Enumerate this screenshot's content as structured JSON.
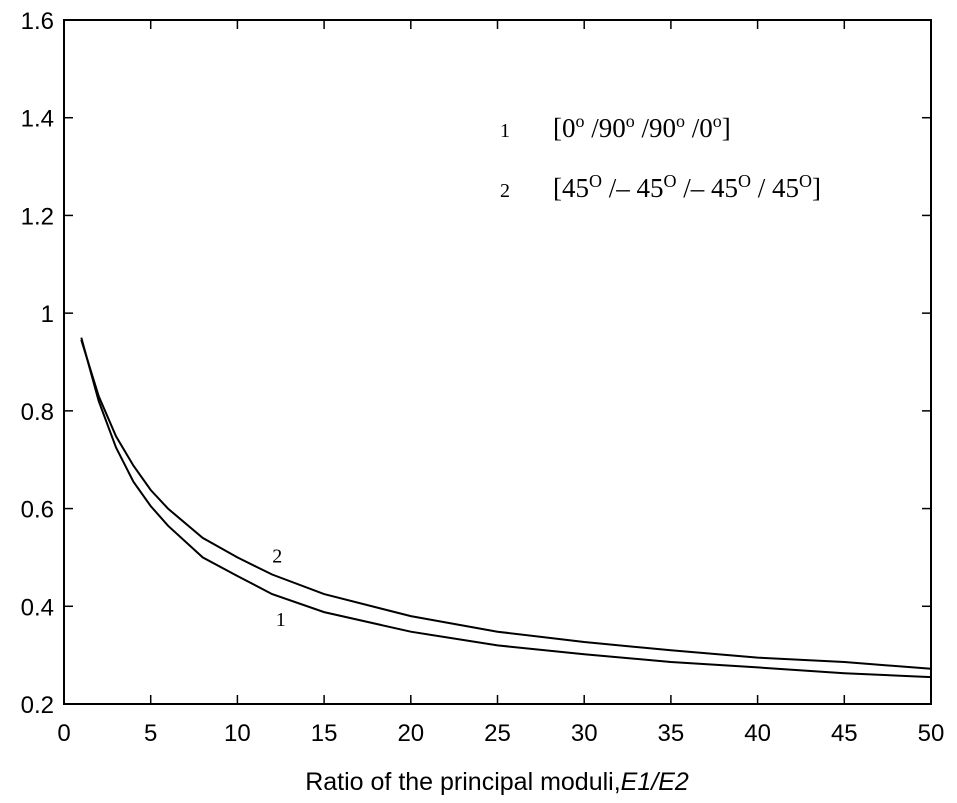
{
  "chart_data": {
    "type": "line",
    "title": "",
    "xlabel": "Ratio of the principal moduli,",
    "xlabel_italic": "E1/E2",
    "ylabel": "",
    "xlim": [
      0,
      50
    ],
    "ylim": [
      0.2,
      1.6
    ],
    "grid": false,
    "x_ticks": [
      "0",
      "5",
      "10",
      "15",
      "20",
      "25",
      "30",
      "35",
      "40",
      "45",
      "50"
    ],
    "y_ticks": [
      "0.2",
      "0.4",
      "0.6",
      "0.8",
      "1",
      "1.2",
      "1.4",
      "1.6"
    ],
    "series": [
      {
        "name": "1",
        "x": [
          1,
          2,
          3,
          4,
          5,
          6,
          8,
          10,
          12,
          15,
          20,
          25,
          30,
          35,
          40,
          45,
          50
        ],
        "y": [
          0.95,
          0.82,
          0.725,
          0.655,
          0.605,
          0.565,
          0.5,
          0.462,
          0.425,
          0.388,
          0.348,
          0.32,
          0.302,
          0.286,
          0.275,
          0.263,
          0.255
        ],
        "label_at": [
          12.5,
          0.36
        ]
      },
      {
        "name": "2",
        "x": [
          1,
          2,
          3,
          4,
          5,
          6,
          8,
          10,
          12,
          15,
          20,
          25,
          30,
          35,
          40,
          45,
          50
        ],
        "y": [
          0.945,
          0.83,
          0.748,
          0.688,
          0.638,
          0.6,
          0.54,
          0.5,
          0.465,
          0.425,
          0.38,
          0.348,
          0.327,
          0.31,
          0.295,
          0.286,
          0.272
        ],
        "label_at": [
          12.3,
          0.49
        ]
      }
    ],
    "legend": {
      "placement": "top-right",
      "entries": [
        {
          "key": "1",
          "parts": [
            {
              "t": "[0"
            },
            {
              "t": "o",
              "sup": true
            },
            {
              "t": " /90"
            },
            {
              "t": "o",
              "sup": true
            },
            {
              "t": " /90"
            },
            {
              "t": "o",
              "sup": true
            },
            {
              "t": " /0"
            },
            {
              "t": "o",
              "sup": true
            },
            {
              "t": "]"
            }
          ]
        },
        {
          "key": "2",
          "parts": [
            {
              "t": "[45"
            },
            {
              "t": "O",
              "sup": true
            },
            {
              "t": " /– 45"
            },
            {
              "t": "O",
              "sup": true
            },
            {
              "t": " /– 45"
            },
            {
              "t": "O",
              "sup": true
            },
            {
              "t": " / 45"
            },
            {
              "t": "O",
              "sup": true
            },
            {
              "t": "]"
            }
          ]
        }
      ]
    }
  }
}
